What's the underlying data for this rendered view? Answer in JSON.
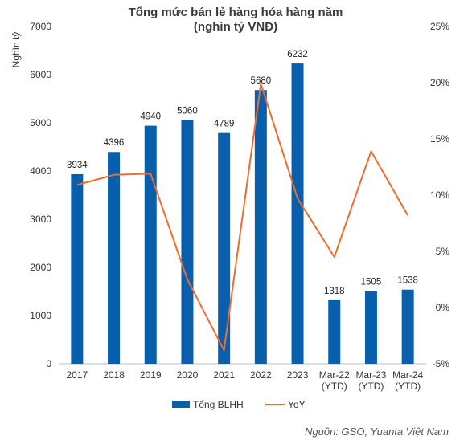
{
  "chart_data": {
    "type": "bar",
    "title": "Tổng mức bán lẻ hàng hóa hàng năm",
    "subtitle": "(nghìn tỷ VNĐ)",
    "ylabel": "Nghìn tỷ",
    "ylim": [
      0,
      7000
    ],
    "y_ticks": [
      "0",
      "1000",
      "2000",
      "3000",
      "4000",
      "5000",
      "6000",
      "7000"
    ],
    "y2lim": [
      -5,
      25
    ],
    "y2_ticks": [
      "-5%",
      "0%",
      "5%",
      "10%",
      "15%",
      "20%",
      "25%"
    ],
    "categories": [
      [
        "2017"
      ],
      [
        "2018"
      ],
      [
        "2019"
      ],
      [
        "2020"
      ],
      [
        "2021"
      ],
      [
        "2022"
      ],
      [
        "2023"
      ],
      [
        "Mar-22",
        "(YTD)"
      ],
      [
        "Mar-23",
        "(YTD)"
      ],
      [
        "Mar-24",
        "(YTD)"
      ]
    ],
    "series": [
      {
        "name": "Tổng BLHH",
        "kind": "bar",
        "axis": "left",
        "color": "#0a5fad",
        "values": [
          3934,
          4396,
          4940,
          5060,
          4789,
          5680,
          6232,
          1318,
          1505,
          1538
        ],
        "labels": [
          "3934",
          "4396",
          "4940",
          "5060",
          "4789",
          "5680",
          "6232",
          "1318",
          "1505",
          "1538"
        ]
      },
      {
        "name": "YoY",
        "kind": "line",
        "axis": "right",
        "color": "#ee6c2d",
        "values": [
          10.9,
          11.8,
          11.9,
          2.5,
          -3.8,
          19.9,
          9.7,
          4.5,
          13.9,
          8.2
        ]
      }
    ],
    "grid": false,
    "legend_position": "bottom"
  },
  "source_text": "Nguồn: GSO, Yuanta Việt Nam"
}
